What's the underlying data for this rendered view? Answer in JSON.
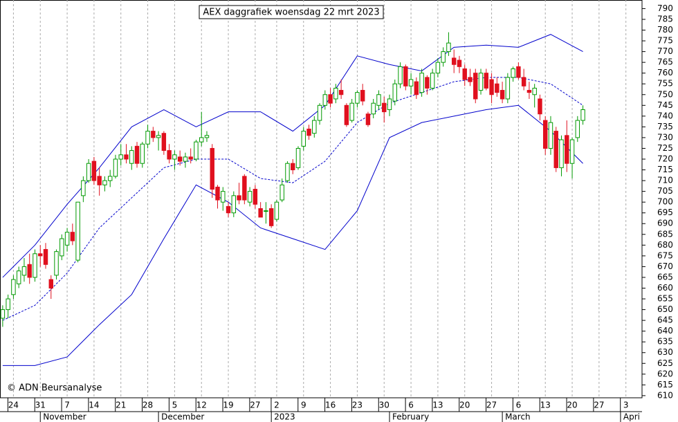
{
  "chart_data": {
    "type": "candlestick",
    "title": "AEX daggrafiek woensdag 22 mrt 2023",
    "annotation": "© ADN Beursanalyse",
    "up_color": "#009900",
    "down_color": "#e0101e",
    "grid": true,
    "x": [
      0,
      1,
      2,
      3,
      4,
      5,
      6,
      7,
      8,
      9,
      10,
      11,
      12,
      13,
      14,
      15,
      16,
      17,
      18,
      19,
      20,
      21,
      22,
      23,
      24,
      25,
      26,
      27,
      28,
      29,
      30,
      31,
      32,
      33,
      34,
      35,
      36,
      37,
      38,
      39,
      40,
      41,
      42,
      43,
      44,
      45,
      46,
      47,
      48,
      49,
      50,
      51,
      52,
      53,
      54,
      55,
      56,
      57,
      58,
      59,
      60,
      61,
      62,
      63,
      64,
      65,
      66,
      67,
      68,
      69,
      70,
      71,
      72,
      73,
      74,
      75,
      76,
      77,
      78,
      79,
      80,
      81,
      82,
      83,
      84,
      85,
      86,
      87,
      88,
      89,
      90,
      91,
      92,
      93,
      94,
      95,
      96,
      97,
      98,
      99,
      100,
      101,
      102,
      103,
      104,
      105,
      106,
      107,
      108
    ],
    "open": [
      646,
      650,
      657,
      662,
      666,
      671,
      665,
      676,
      678,
      664,
      666,
      675,
      680,
      686,
      673,
      703,
      710,
      719,
      712,
      708,
      710,
      712,
      720,
      722,
      718,
      726,
      718,
      727,
      733,
      730,
      732,
      724,
      720,
      721,
      719,
      721,
      720,
      728,
      730,
      725,
      707,
      700,
      698,
      695,
      703,
      712,
      700,
      706,
      697,
      696,
      697,
      692,
      701,
      710,
      718,
      716,
      726,
      734,
      732,
      738,
      745,
      750,
      748,
      752,
      745,
      738,
      746,
      752,
      741,
      741,
      745,
      746,
      743,
      747,
      755,
      763,
      754,
      756,
      751,
      758,
      753,
      760,
      765,
      770,
      767,
      766,
      762,
      758,
      760,
      752,
      760,
      757,
      755,
      752,
      748,
      758,
      763,
      758,
      752,
      750,
      748,
      738,
      725,
      733,
      716,
      731,
      718,
      730,
      738
    ],
    "high": [
      652,
      657,
      666,
      670,
      674,
      676,
      678,
      680,
      681,
      666,
      678,
      685,
      688,
      690,
      700,
      712,
      720,
      721,
      716,
      712,
      715,
      722,
      727,
      727,
      726,
      728,
      728,
      736,
      735,
      733,
      733,
      727,
      724,
      724,
      723,
      725,
      729,
      742,
      733,
      727,
      708,
      707,
      700,
      705,
      709,
      713,
      707,
      708,
      700,
      700,
      699,
      701,
      711,
      719,
      720,
      726,
      735,
      736,
      740,
      746,
      752,
      753,
      755,
      757,
      746,
      748,
      752,
      755,
      742,
      748,
      752,
      749,
      750,
      757,
      765,
      764,
      760,
      758,
      762,
      759,
      762,
      767,
      772,
      779,
      771,
      768,
      764,
      762,
      762,
      762,
      762,
      760,
      758,
      756,
      760,
      763,
      765,
      762,
      756,
      755,
      750,
      740,
      740,
      735,
      731,
      738,
      730,
      740,
      745
    ],
    "low": [
      642,
      646,
      655,
      660,
      663,
      662,
      663,
      670,
      669,
      655,
      664,
      673,
      677,
      680,
      672,
      700,
      709,
      708,
      703,
      705,
      707,
      711,
      717,
      718,
      715,
      716,
      716,
      725,
      728,
      724,
      722,
      718,
      715,
      717,
      716,
      718,
      719,
      726,
      728,
      702,
      697,
      696,
      693,
      693,
      699,
      699,
      698,
      697,
      693,
      690,
      688,
      691,
      700,
      709,
      713,
      715,
      724,
      729,
      730,
      736,
      743,
      744,
      746,
      748,
      735,
      737,
      744,
      745,
      735,
      739,
      743,
      737,
      740,
      745,
      753,
      752,
      750,
      748,
      749,
      750,
      752,
      758,
      763,
      768,
      760,
      760,
      754,
      754,
      746,
      750,
      752,
      746,
      749,
      746,
      746,
      756,
      757,
      752,
      748,
      744,
      738,
      722,
      722,
      714,
      712,
      714,
      711,
      728,
      736
    ],
    "close": [
      650,
      655,
      664,
      668,
      670,
      665,
      676,
      675,
      671,
      660,
      677,
      683,
      686,
      682,
      700,
      710,
      718,
      710,
      708,
      710,
      712,
      720,
      722,
      720,
      724,
      718,
      727,
      733,
      730,
      731,
      724,
      720,
      722,
      719,
      721,
      720,
      728,
      730,
      731,
      706,
      701,
      705,
      695,
      703,
      701,
      701,
      705,
      699,
      693,
      696,
      689,
      700,
      708,
      718,
      715,
      725,
      733,
      731,
      738,
      745,
      750,
      746,
      753,
      750,
      736,
      746,
      751,
      747,
      736,
      746,
      750,
      742,
      748,
      755,
      763,
      754,
      757,
      750,
      760,
      753,
      760,
      765,
      770,
      774,
      764,
      763,
      757,
      756,
      748,
      760,
      753,
      750,
      751,
      748,
      758,
      762,
      758,
      754,
      751,
      753,
      741,
      725,
      737,
      716,
      729,
      718,
      729,
      738,
      743
    ],
    "bands": [
      {
        "color": "#0000cc",
        "dashed": false,
        "x": [
          0,
          6,
          12,
          18,
          24,
          30,
          36,
          42,
          48,
          54,
          60,
          66,
          72,
          78,
          84,
          90,
          96,
          102,
          108
        ],
        "values": [
          665,
          680,
          699,
          716,
          735,
          743,
          735,
          742,
          742,
          733,
          745,
          768,
          764,
          761,
          772,
          773,
          772,
          778,
          770
        ]
      },
      {
        "color": "#0000cc",
        "dashed": true,
        "x": [
          0,
          6,
          12,
          18,
          24,
          30,
          36,
          42,
          48,
          54,
          60,
          66,
          72,
          78,
          84,
          90,
          96,
          102,
          108
        ],
        "values": [
          645,
          652,
          667,
          688,
          702,
          716,
          720,
          720,
          711,
          709,
          719,
          737,
          746,
          751,
          756,
          758,
          758,
          755,
          745
        ]
      },
      {
        "color": "#0000cc",
        "dashed": false,
        "x": [
          0,
          6,
          12,
          18,
          24,
          30,
          36,
          42,
          48,
          54,
          60,
          66,
          72,
          78,
          84,
          90,
          96,
          102,
          108
        ],
        "values": [
          624,
          624,
          628,
          643,
          657,
          683,
          708,
          700,
          688,
          683,
          678,
          696,
          730,
          737,
          740,
          743,
          745,
          733,
          718
        ]
      }
    ],
    "xlim": [
      -0.5,
      119
    ],
    "ylim": [
      609,
      794
    ],
    "xticks": [
      {
        "value": 2,
        "label": "24"
      },
      {
        "value": 7,
        "label": "31"
      },
      {
        "value": 12,
        "label": "7"
      },
      {
        "value": 17,
        "label": "14"
      },
      {
        "value": 22,
        "label": "21"
      },
      {
        "value": 27,
        "label": "28"
      },
      {
        "value": 32,
        "label": "5"
      },
      {
        "value": 37,
        "label": "12"
      },
      {
        "value": 42,
        "label": "19"
      },
      {
        "value": 47,
        "label": "27"
      },
      {
        "value": 51,
        "label": "2"
      },
      {
        "value": 56,
        "label": "9"
      },
      {
        "value": 61,
        "label": "16"
      },
      {
        "value": 66,
        "label": "23"
      },
      {
        "value": 71,
        "label": "30"
      },
      {
        "value": 76,
        "label": "6"
      },
      {
        "value": 81,
        "label": "13"
      },
      {
        "value": 86,
        "label": "20"
      },
      {
        "value": 91,
        "label": "27"
      },
      {
        "value": 96,
        "label": "6"
      },
      {
        "value": 101,
        "label": "13"
      },
      {
        "value": 106,
        "label": "20"
      },
      {
        "value": 111,
        "label": "27"
      },
      {
        "value": 116,
        "label": "3"
      }
    ],
    "month_ticks": [
      {
        "value": 7,
        "label": "November"
      },
      {
        "value": 29,
        "label": "December"
      },
      {
        "value": 50,
        "label": "2023"
      },
      {
        "value": 72,
        "label": "February"
      },
      {
        "value": 93,
        "label": "March"
      },
      {
        "value": 115,
        "label": "Apri"
      }
    ],
    "yticks": [
      610,
      615,
      620,
      625,
      630,
      635,
      640,
      645,
      650,
      655,
      660,
      665,
      670,
      675,
      680,
      685,
      690,
      695,
      700,
      705,
      710,
      715,
      720,
      725,
      730,
      735,
      740,
      745,
      750,
      755,
      760,
      765,
      770,
      775,
      780,
      785,
      790
    ]
  }
}
